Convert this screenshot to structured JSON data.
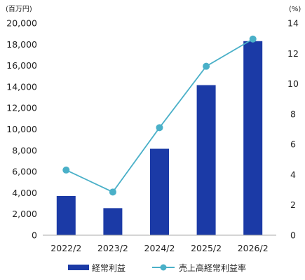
{
  "chart_data": {
    "type": "bar",
    "categories": [
      "2022/2",
      "2023/2",
      "2024/2",
      "2025/2",
      "2026/2"
    ],
    "series": [
      {
        "name": "経常利益",
        "type": "bar",
        "axis": "left",
        "color": "#1b3aa6",
        "values": [
          3700,
          2550,
          8150,
          14150,
          18300
        ]
      },
      {
        "name": "売上高経常利益率",
        "type": "line",
        "axis": "right",
        "color": "#4ab0c8",
        "values": [
          4.3,
          2.85,
          7.1,
          11.15,
          12.95
        ]
      }
    ],
    "left_axis": {
      "unit": "(百万円)",
      "ylim": [
        0,
        20000
      ],
      "ticks": [
        "0",
        "2,000",
        "4,000",
        "6,000",
        "8,000",
        "10,000",
        "12,000",
        "14,000",
        "16,000",
        "18,000",
        "20,000"
      ]
    },
    "right_axis": {
      "unit": "(%)",
      "ylim": [
        0,
        14
      ],
      "ticks": [
        "0",
        "2",
        "4",
        "6",
        "8",
        "10",
        "12",
        "14"
      ]
    },
    "grid": false,
    "legend": "bottom"
  }
}
